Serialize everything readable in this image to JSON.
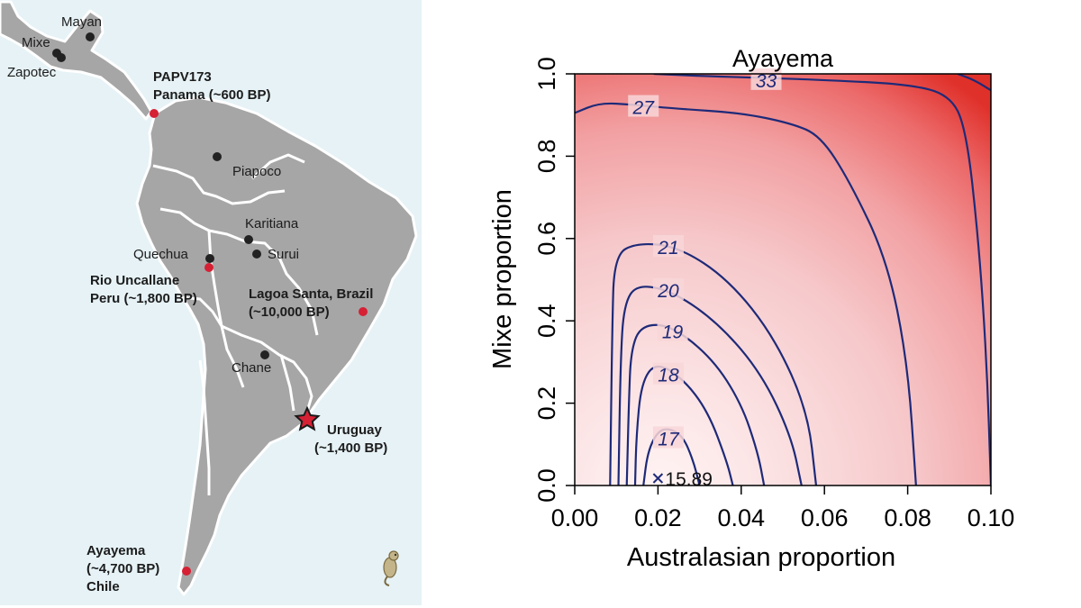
{
  "map": {
    "colors": {
      "ocean": "#e6f2f6",
      "land": "#a6a6a6",
      "border": "#ffffff",
      "ancient": "#d62034",
      "modern": "#222222"
    },
    "modern_sites": [
      {
        "name": "Mayan"
      },
      {
        "name": "Mixe"
      },
      {
        "name": "Zapotec"
      },
      {
        "name": "Piapoco"
      },
      {
        "name": "Karitiana"
      },
      {
        "name": "Surui"
      },
      {
        "name": "Quechua"
      },
      {
        "name": "Chane"
      }
    ],
    "ancient_sites": [
      {
        "name": "PAPV173",
        "place": "Panama (~600 BP)"
      },
      {
        "name": "Rio Uncallane",
        "place": "Peru (~1,800 BP)"
      },
      {
        "name": "Lagoa Santa, Brazil",
        "place": "(~10,000 BP)"
      },
      {
        "name": "Uruguay",
        "place": "(~1,400 BP)"
      },
      {
        "name": "Ayayema",
        "place": "(~4,700 BP)",
        "place2": "Chile"
      }
    ],
    "star_icon": "star-icon",
    "logo_icon": "seahorse-icon"
  },
  "chart_data": {
    "type": "contour",
    "title": "Ayayema",
    "xlabel": "Australasian proportion",
    "ylabel": "Mixe proportion",
    "xlim": [
      0.0,
      0.1
    ],
    "ylim": [
      0.0,
      1.0
    ],
    "x_ticks": [
      "0.00",
      "0.02",
      "0.04",
      "0.06",
      "0.08",
      "0.10"
    ],
    "y_ticks": [
      "0.0",
      "0.2",
      "0.4",
      "0.6",
      "0.8",
      "1.0"
    ],
    "minimum": {
      "x": 0.02,
      "y": 0.0,
      "label": "15.89"
    },
    "contours": [
      {
        "level": "17",
        "label_at": [
          0.0225,
          0.115
        ],
        "points": [
          [
            0.0165,
            0.0
          ],
          [
            0.0175,
            0.08
          ],
          [
            0.0198,
            0.13
          ],
          [
            0.0225,
            0.14
          ],
          [
            0.026,
            0.12
          ],
          [
            0.0285,
            0.06
          ],
          [
            0.03,
            0.0
          ]
        ]
      },
      {
        "level": "18",
        "label_at": [
          0.0225,
          0.27
        ],
        "points": [
          [
            0.0145,
            0.0
          ],
          [
            0.0148,
            0.12
          ],
          [
            0.016,
            0.25
          ],
          [
            0.0195,
            0.3
          ],
          [
            0.026,
            0.26
          ],
          [
            0.032,
            0.18
          ],
          [
            0.0365,
            0.06
          ],
          [
            0.038,
            0.0
          ]
        ]
      },
      {
        "level": "19",
        "label_at": [
          0.0235,
          0.375
        ],
        "points": [
          [
            0.0125,
            0.0
          ],
          [
            0.013,
            0.2
          ],
          [
            0.0135,
            0.33
          ],
          [
            0.016,
            0.39
          ],
          [
            0.023,
            0.39
          ],
          [
            0.033,
            0.31
          ],
          [
            0.04,
            0.2
          ],
          [
            0.044,
            0.08
          ],
          [
            0.0455,
            0.0
          ]
        ]
      },
      {
        "level": "20",
        "label_at": [
          0.0225,
          0.475
        ],
        "points": [
          [
            0.0105,
            0.0
          ],
          [
            0.011,
            0.3
          ],
          [
            0.0118,
            0.44
          ],
          [
            0.015,
            0.49
          ],
          [
            0.024,
            0.47
          ],
          [
            0.035,
            0.39
          ],
          [
            0.045,
            0.27
          ],
          [
            0.052,
            0.12
          ],
          [
            0.0545,
            0.0
          ]
        ]
      },
      {
        "level": "21",
        "label_at": [
          0.0225,
          0.58
        ],
        "points": [
          [
            0.0085,
            0.0
          ],
          [
            0.009,
            0.38
          ],
          [
            0.0095,
            0.56
          ],
          [
            0.015,
            0.59
          ],
          [
            0.025,
            0.58
          ],
          [
            0.037,
            0.5
          ],
          [
            0.048,
            0.36
          ],
          [
            0.056,
            0.18
          ],
          [
            0.058,
            0.0
          ]
        ]
      },
      {
        "level": "27",
        "label_at": [
          0.0165,
          0.92
        ],
        "points": [
          [
            0.0,
            0.905
          ],
          [
            0.006,
            0.93
          ],
          [
            0.014,
            0.925
          ],
          [
            0.025,
            0.915
          ],
          [
            0.04,
            0.905
          ],
          [
            0.052,
            0.88
          ],
          [
            0.059,
            0.85
          ],
          [
            0.066,
            0.74
          ],
          [
            0.075,
            0.55
          ],
          [
            0.08,
            0.3
          ],
          [
            0.082,
            0.0
          ]
        ]
      },
      {
        "level": "33",
        "label_at": [
          0.046,
          0.985
        ],
        "points": [
          [
            0.019,
            1.0
          ],
          [
            0.03,
            0.995
          ],
          [
            0.046,
            0.99
          ],
          [
            0.06,
            0.985
          ],
          [
            0.08,
            0.975
          ],
          [
            0.09,
            0.95
          ],
          [
            0.094,
            0.87
          ],
          [
            0.097,
            0.6
          ],
          [
            0.099,
            0.3
          ],
          [
            0.1,
            0.0
          ]
        ]
      },
      {
        "level": "",
        "label_at": null,
        "points": [
          [
            0.092,
            1.0
          ],
          [
            0.096,
            0.985
          ],
          [
            0.1,
            0.96
          ]
        ]
      }
    ]
  }
}
